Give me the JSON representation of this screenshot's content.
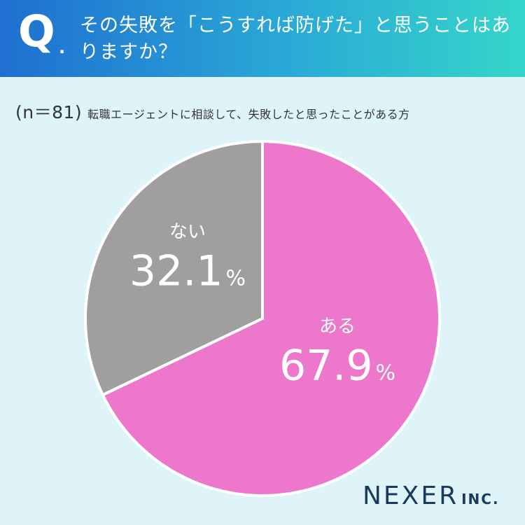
{
  "header": {
    "q_mark": "Q",
    "question": "その失敗を「こうすれば防げた」と思うことはありますか？"
  },
  "subtitle": {
    "sample": "(n＝81)",
    "audience": "転職エージェントに相談して、失敗したと思ったことがある方"
  },
  "chart_data": {
    "type": "pie",
    "categories": [
      "ある",
      "ない"
    ],
    "values": [
      67.9,
      32.1
    ],
    "value_suffix": "%",
    "colors": [
      "#ed77cb",
      "#a09e9f"
    ],
    "start": "12 o'clock",
    "direction": "clockwise",
    "slice_label_color": "#ffffff"
  },
  "brand": {
    "name": "NEXER",
    "suffix": "INC."
  },
  "colors": {
    "background": "#dff4f8",
    "header_gradient": [
      "#1f6fd0",
      "#35d6c9"
    ]
  }
}
